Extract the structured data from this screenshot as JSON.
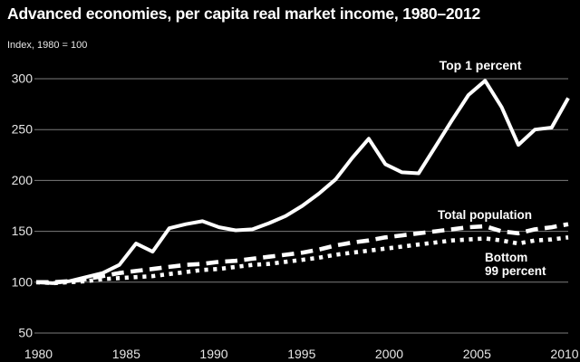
{
  "header": {
    "title": "Advanced economies, per capita real market income, 1980–2012",
    "subtitle": "Index, 1980 = 100"
  },
  "chart_data": {
    "type": "line",
    "title": "Advanced economies, per capita real market income, 1980–2012",
    "subtitle": "Index, 1980 = 100",
    "xlabel": "",
    "ylabel": "Index, 1980 = 100",
    "xlim": [
      1980,
      2012
    ],
    "ylim": [
      50,
      310
    ],
    "grid": "horizontal",
    "legend_position": "inline-annotations",
    "background_color": "#000000",
    "line_color": "#ffffff",
    "gridline_color": "#7c7c7c",
    "axis_text_color": "#e6e6e6",
    "y_ticks": [
      50,
      100,
      150,
      200,
      250,
      300
    ],
    "x_tick_labels": [
      "1980",
      "1985",
      "1990",
      "1995",
      "2000",
      "2005",
      "2010"
    ],
    "x": [
      1980,
      1981,
      1982,
      1983,
      1984,
      1985,
      1986,
      1987,
      1988,
      1989,
      1990,
      1991,
      1992,
      1993,
      1994,
      1995,
      1996,
      1997,
      1998,
      1999,
      2000,
      2001,
      2002,
      2003,
      2004,
      2005,
      2006,
      2007,
      2008,
      2009,
      2010,
      2011,
      2012
    ],
    "series": [
      {
        "name": "Top 1 percent",
        "line_style": "solid",
        "values": [
          100,
          99,
          101,
          105,
          109,
          117,
          138,
          130,
          153,
          157,
          160,
          154,
          151,
          152,
          158,
          165,
          175,
          187,
          201,
          222,
          241,
          216,
          208,
          207,
          233,
          259,
          284,
          298,
          272,
          235,
          250,
          252,
          281
        ]
      },
      {
        "name": "Total population",
        "line_style": "dashed",
        "values": [
          100,
          100,
          101,
          103,
          106,
          109,
          111,
          113,
          115,
          117,
          118,
          120,
          121,
          123,
          125,
          127,
          129,
          132,
          136,
          139,
          141,
          144,
          146,
          148,
          150,
          152,
          154,
          155,
          150,
          148,
          152,
          154,
          157
        ]
      },
      {
        "name": "Bottom 99 percent",
        "line_style": "dotted",
        "values": [
          100,
          99,
          100,
          101,
          103,
          104,
          105,
          106,
          108,
          110,
          112,
          113,
          115,
          117,
          118,
          120,
          122,
          124,
          127,
          129,
          131,
          133,
          135,
          137,
          139,
          141,
          142,
          143,
          141,
          138,
          141,
          142,
          144
        ]
      }
    ],
    "annotations": [
      {
        "text": "Top 1 percent"
      },
      {
        "text": "Total population"
      },
      {
        "lines": [
          "Bottom",
          "99 percent"
        ]
      }
    ]
  }
}
